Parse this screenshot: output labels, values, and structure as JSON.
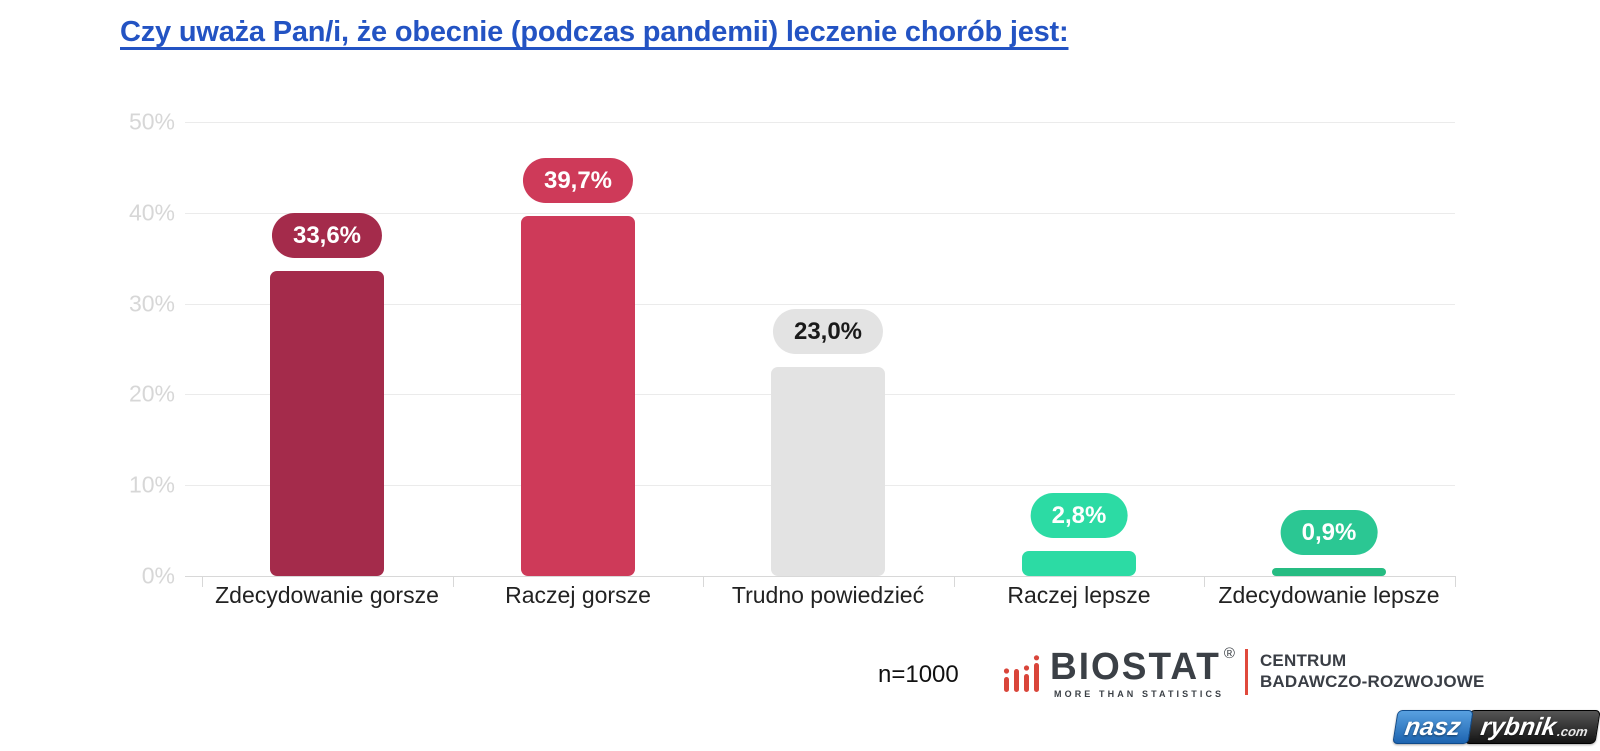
{
  "page": {
    "title": "Czy uważa Pan/i, że obecnie (podczas pandemii) leczenie chorób jest:",
    "title_color": "#2353c3"
  },
  "chart_data": {
    "type": "bar",
    "title": "Czy uważa Pan/i, że obecnie (podczas pandemii) leczenie chorób jest:",
    "categories": [
      "Zdecydowanie gorsze",
      "Raczej gorsze",
      "Trudno powiedzieć",
      "Raczej lepsze",
      "Zdecydowanie lepsze"
    ],
    "values": [
      33.6,
      39.7,
      23.0,
      2.8,
      0.9
    ],
    "value_labels": [
      "33,6%",
      "39,7%",
      "23,0%",
      "2,8%",
      "0,9%"
    ],
    "bar_colors": [
      "#a42b4b",
      "#ce3a59",
      "#e3e3e3",
      "#2cdba4",
      "#26bc82"
    ],
    "pill_colors": [
      "#a42b4b",
      "#ce3a59",
      "#e3e3e3",
      "#2cdba4",
      "#2bc793"
    ],
    "pill_text_colors": [
      "#ffffff",
      "#ffffff",
      "#1a1a1a",
      "#ffffff",
      "#ffffff"
    ],
    "xlabel": "",
    "ylabel": "",
    "ylim": [
      0,
      50
    ],
    "yticks": [
      0,
      10,
      20,
      30,
      40,
      50
    ],
    "ytick_labels": [
      "0%",
      "10%",
      "20%",
      "30%",
      "40%",
      "50%"
    ],
    "grid": true,
    "legend": false,
    "sample_size": "n=1000"
  },
  "footer": {
    "sample_size": "n=1000",
    "biostat": {
      "logo_icon": "red-bar-chart-icon",
      "brand": "BIOSTAT",
      "registered_mark": "®",
      "tagline": "MORE THAN STATISTICS",
      "division_line1": "CENTRUM",
      "division_line2": "BADAWCZO-ROZWOJOWE",
      "brand_color": "#3b4046",
      "accent_color": "#e0493c"
    },
    "watermark": {
      "part1": "nasz",
      "part2": "rybnik",
      "part3": ".com",
      "part1_bg": "#2e7bc4",
      "part2_bg": "#2a2a2a"
    }
  }
}
